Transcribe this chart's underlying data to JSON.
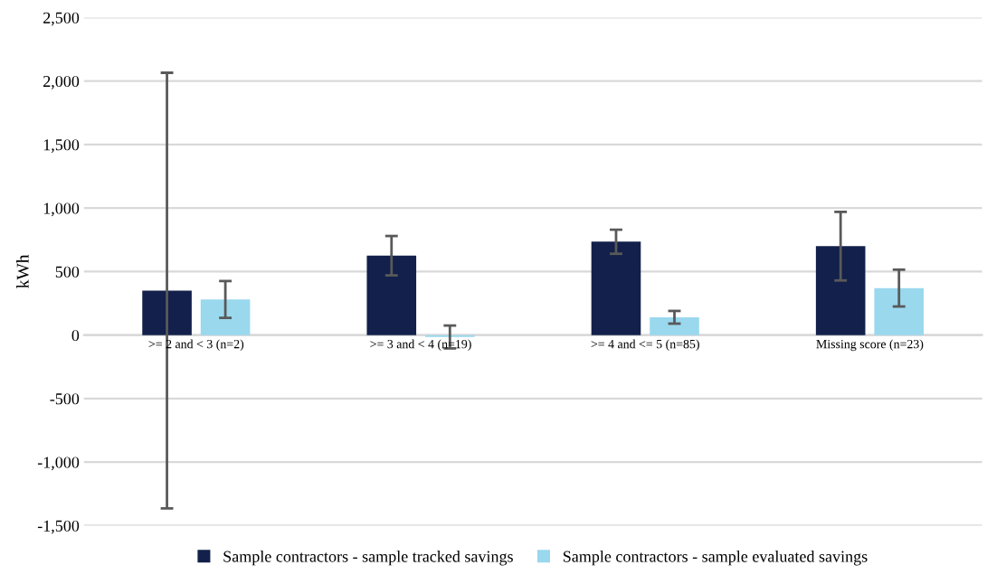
{
  "chart_data": {
    "type": "bar",
    "ylabel": "kWh",
    "categories": [
      ">= 2 and < 3 (n=2)",
      ">= 3 and < 4 (n=19)",
      ">= 4 and <= 5 (n=85)",
      "Missing score (n=23)"
    ],
    "series": [
      {
        "name": "Sample contractors - sample tracked savings",
        "color": "#12204b",
        "values": [
          350,
          625,
          735,
          700
        ],
        "errors": [
          1715,
          155,
          95,
          270
        ]
      },
      {
        "name": "Sample contractors - sample evaluated savings",
        "color": "#9ad8ee",
        "values": [
          280,
          -15,
          140,
          370
        ],
        "errors": [
          145,
          90,
          50,
          145
        ]
      }
    ],
    "ylim": [
      -1500,
      2500
    ],
    "yticks": [
      {
        "value": -1500,
        "label": "-1,500"
      },
      {
        "value": -1000,
        "label": "-1,000"
      },
      {
        "value": -500,
        "label": "-500"
      },
      0,
      500,
      {
        "value": 1000,
        "label": "1,000"
      },
      {
        "value": 1500,
        "label": "1,500"
      },
      {
        "value": 2000,
        "label": "2,000"
      },
      {
        "value": 2500,
        "label": "2,500"
      }
    ],
    "grid": "y",
    "legend": "bottom"
  }
}
